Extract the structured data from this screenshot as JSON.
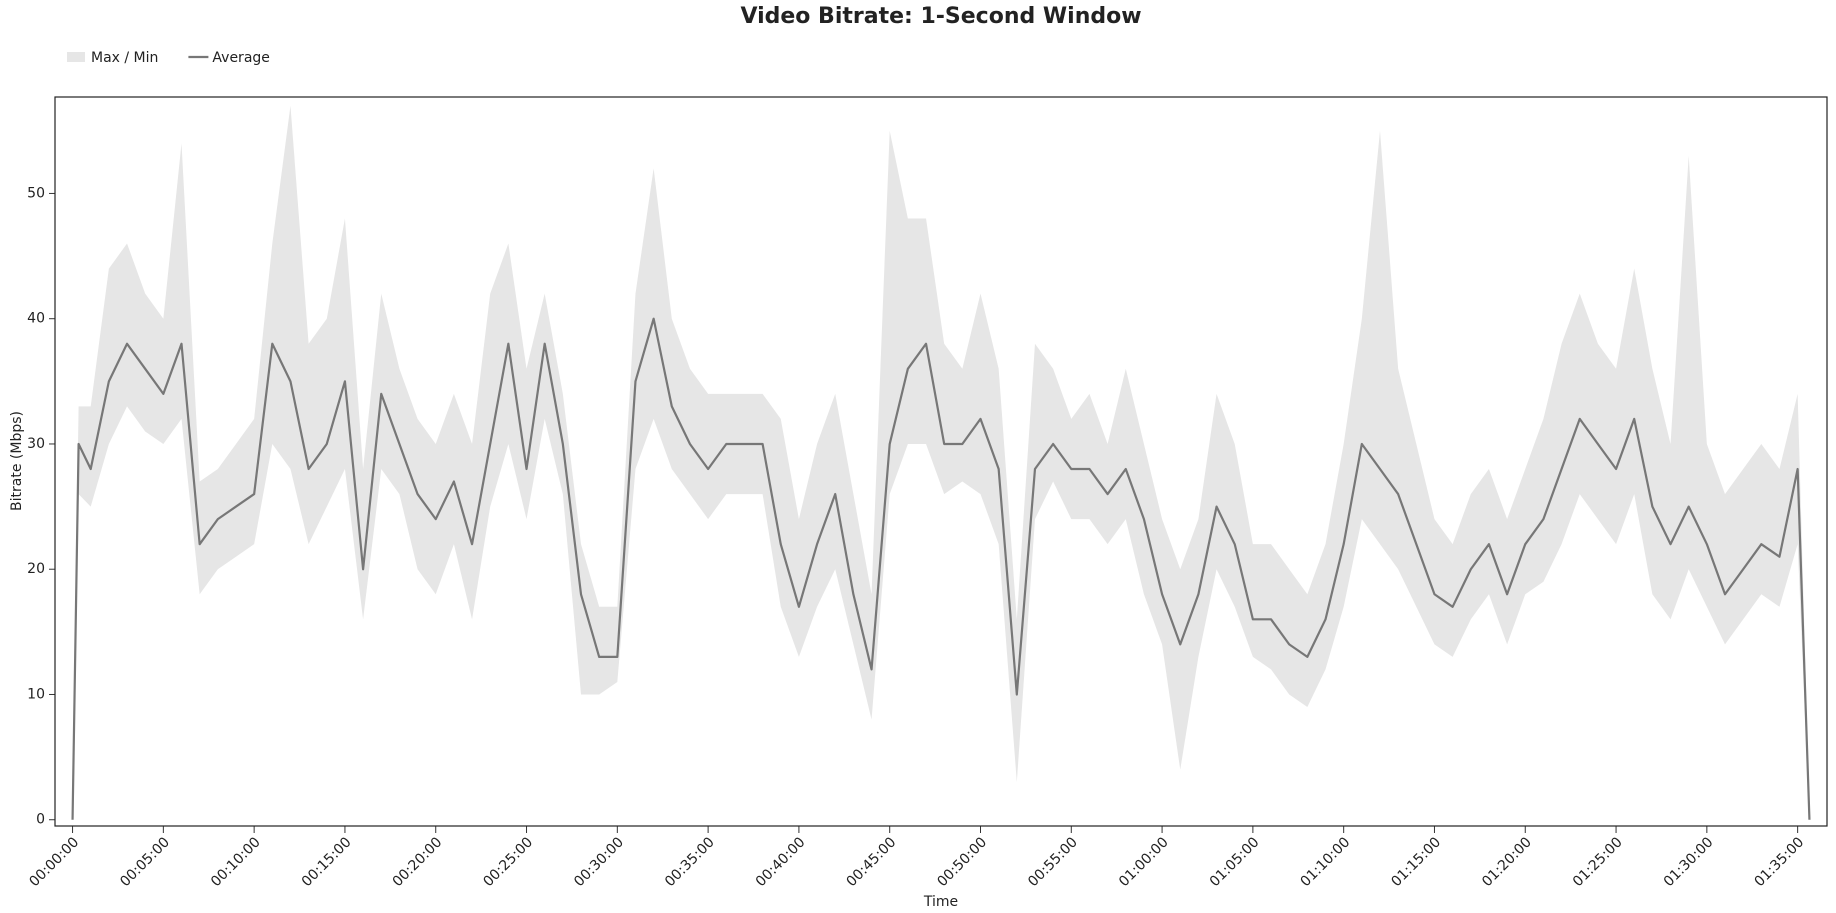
{
  "chart_data": {
    "type": "line",
    "title": "Video Bitrate: 1-Second Window",
    "x_label": "Time",
    "y_label": "Bitrate (Mbps)",
    "xlim": [
      -58,
      5797
    ],
    "ylim": [
      -0.5,
      57.7
    ],
    "xticks": [
      {
        "value": 0,
        "label": "00:00:00"
      },
      {
        "value": 300,
        "label": "00:05:00"
      },
      {
        "value": 600,
        "label": "00:10:00"
      },
      {
        "value": 900,
        "label": "00:15:00"
      },
      {
        "value": 1200,
        "label": "00:20:00"
      },
      {
        "value": 1500,
        "label": "00:25:00"
      },
      {
        "value": 1800,
        "label": "00:30:00"
      },
      {
        "value": 2100,
        "label": "00:35:00"
      },
      {
        "value": 2400,
        "label": "00:40:00"
      },
      {
        "value": 2700,
        "label": "00:45:00"
      },
      {
        "value": 3000,
        "label": "00:50:00"
      },
      {
        "value": 3300,
        "label": "00:55:00"
      },
      {
        "value": 3600,
        "label": "01:00:00"
      },
      {
        "value": 3900,
        "label": "01:05:00"
      },
      {
        "value": 4200,
        "label": "01:10:00"
      },
      {
        "value": 4500,
        "label": "01:15:00"
      },
      {
        "value": 4800,
        "label": "01:20:00"
      },
      {
        "value": 5100,
        "label": "01:25:00"
      },
      {
        "value": 5400,
        "label": "01:30:00"
      },
      {
        "value": 5700,
        "label": "01:35:00"
      }
    ],
    "yticks": [
      0,
      10,
      20,
      30,
      40,
      50
    ],
    "x": [
      0,
      20,
      60,
      120,
      180,
      240,
      300,
      360,
      420,
      480,
      540,
      600,
      660,
      720,
      780,
      840,
      900,
      960,
      1020,
      1080,
      1140,
      1200,
      1260,
      1320,
      1380,
      1440,
      1500,
      1560,
      1620,
      1680,
      1740,
      1800,
      1860,
      1920,
      1980,
      2040,
      2100,
      2160,
      2220,
      2280,
      2340,
      2400,
      2460,
      2520,
      2580,
      2640,
      2700,
      2760,
      2820,
      2880,
      2940,
      3000,
      3060,
      3120,
      3180,
      3240,
      3300,
      3360,
      3420,
      3480,
      3540,
      3600,
      3660,
      3720,
      3780,
      3840,
      3900,
      3960,
      4020,
      4080,
      4140,
      4200,
      4260,
      4320,
      4380,
      4440,
      4500,
      4560,
      4620,
      4680,
      4740,
      4800,
      4860,
      4920,
      4980,
      5040,
      5100,
      5160,
      5220,
      5280,
      5340,
      5400,
      5460,
      5520,
      5580,
      5640,
      5700,
      5739
    ],
    "series": [
      {
        "name": "Max / Min",
        "kind": "band",
        "color": "#e6e6e6",
        "upper": [
          3,
          33,
          33,
          44,
          46,
          42,
          40,
          54,
          27,
          28,
          30,
          32,
          46,
          57,
          38,
          40,
          48,
          28,
          42,
          36,
          32,
          30,
          34,
          30,
          42,
          46,
          36,
          42,
          34,
          22,
          17,
          17,
          42,
          52,
          40,
          36,
          34,
          34,
          34,
          34,
          32,
          24,
          30,
          34,
          26,
          18,
          55,
          48,
          48,
          38,
          36,
          42,
          36,
          16,
          38,
          36,
          32,
          34,
          30,
          36,
          30,
          24,
          20,
          24,
          34,
          30,
          22,
          22,
          20,
          18,
          22,
          30,
          40,
          55,
          36,
          30,
          24,
          22,
          26,
          28,
          24,
          28,
          32,
          38,
          42,
          38,
          36,
          44,
          36,
          30,
          53,
          30,
          26,
          28,
          30,
          28,
          34,
          1
        ],
        "lower": [
          0,
          26,
          25,
          30,
          33,
          31,
          30,
          32,
          18,
          20,
          21,
          22,
          30,
          28,
          22,
          25,
          28,
          16,
          28,
          26,
          20,
          18,
          22,
          16,
          25,
          30,
          24,
          32,
          26,
          10,
          10,
          11,
          28,
          32,
          28,
          26,
          24,
          26,
          26,
          26,
          17,
          13,
          17,
          20,
          14,
          8,
          26,
          30,
          30,
          26,
          27,
          26,
          22,
          3,
          24,
          27,
          24,
          24,
          22,
          24,
          18,
          14,
          4,
          13,
          20,
          17,
          13,
          12,
          10,
          9,
          12,
          17,
          24,
          22,
          20,
          17,
          14,
          13,
          16,
          18,
          14,
          18,
          19,
          22,
          26,
          24,
          22,
          26,
          18,
          16,
          20,
          17,
          14,
          16,
          18,
          17,
          22,
          0
        ]
      },
      {
        "name": "Average",
        "kind": "line",
        "color": "#777777",
        "values": [
          0,
          30,
          28,
          35,
          38,
          36,
          34,
          38,
          22,
          24,
          25,
          26,
          38,
          35,
          28,
          30,
          35,
          20,
          34,
          30,
          26,
          24,
          27,
          22,
          30,
          38,
          28,
          38,
          30,
          18,
          13,
          13,
          35,
          40,
          33,
          30,
          28,
          30,
          30,
          30,
          22,
          17,
          22,
          26,
          18,
          12,
          30,
          36,
          38,
          30,
          30,
          32,
          28,
          10,
          28,
          30,
          28,
          28,
          26,
          28,
          24,
          18,
          14,
          18,
          25,
          22,
          16,
          16,
          14,
          13,
          16,
          22,
          30,
          28,
          26,
          22,
          18,
          17,
          20,
          22,
          18,
          22,
          24,
          28,
          32,
          30,
          28,
          32,
          25,
          22,
          25,
          22,
          18,
          20,
          22,
          21,
          28,
          0
        ]
      }
    ]
  }
}
